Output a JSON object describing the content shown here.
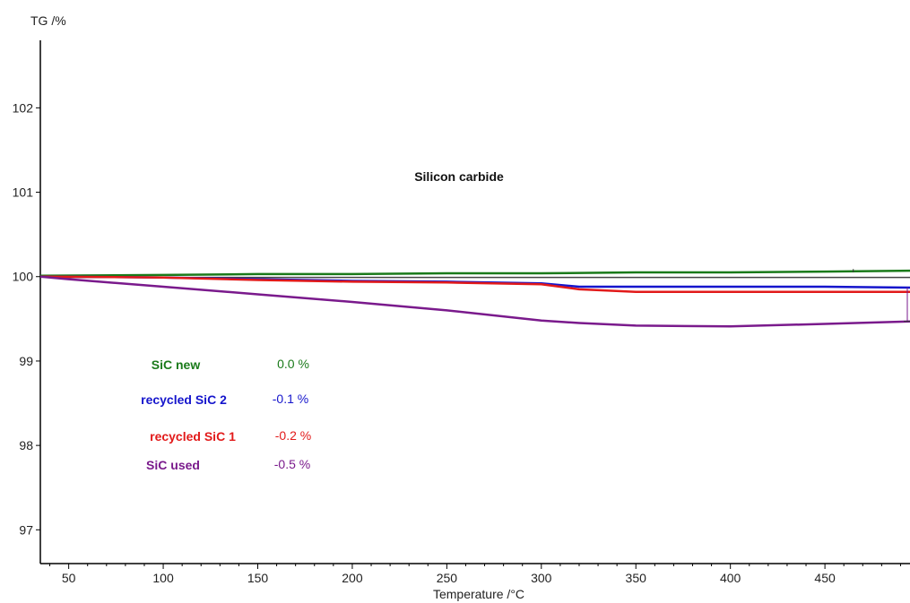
{
  "chart_data": {
    "type": "line",
    "title": "Silicon carbide",
    "xlabel": "Temperature /°C",
    "ylabel": "TG /%",
    "xlim": [
      35,
      495
    ],
    "ylim": [
      96.6,
      102.8
    ],
    "xticks": [
      50,
      100,
      150,
      200,
      250,
      300,
      350,
      400,
      450
    ],
    "yticks": [
      97,
      98,
      99,
      100,
      101,
      102
    ],
    "grid": false,
    "legend_position": "lower-left",
    "series": [
      {
        "name": "SiC new",
        "mass_change": "0.0 %",
        "color": "#1a7a1a",
        "x": [
          35,
          100,
          150,
          200,
          250,
          300,
          350,
          400,
          450,
          495
        ],
        "y": [
          100.01,
          100.02,
          100.03,
          100.03,
          100.04,
          100.04,
          100.05,
          100.05,
          100.06,
          100.07
        ]
      },
      {
        "name": "recycled SiC 2",
        "mass_change": "-0.1 %",
        "color": "#1515cc",
        "x": [
          35,
          100,
          150,
          200,
          250,
          300,
          320,
          350,
          400,
          450,
          495
        ],
        "y": [
          100.0,
          99.99,
          99.97,
          99.95,
          99.94,
          99.92,
          99.88,
          99.88,
          99.88,
          99.88,
          99.87
        ]
      },
      {
        "name": "recycled SiC 1",
        "mass_change": "-0.2 %",
        "color": "#e21a1a",
        "x": [
          35,
          100,
          150,
          200,
          250,
          300,
          320,
          350,
          400,
          450,
          495
        ],
        "y": [
          100.0,
          99.99,
          99.96,
          99.94,
          99.93,
          99.91,
          99.85,
          99.82,
          99.82,
          99.82,
          99.82
        ]
      },
      {
        "name": "SiC used",
        "mass_change": "-0.5 %",
        "color": "#7a1a8c",
        "x": [
          35,
          50,
          100,
          150,
          200,
          250,
          300,
          320,
          350,
          400,
          450,
          495
        ],
        "y": [
          100.0,
          99.97,
          99.88,
          99.79,
          99.7,
          99.6,
          99.48,
          99.45,
          99.42,
          99.41,
          99.44,
          99.47
        ]
      }
    ],
    "reference_line": {
      "y": 99.99,
      "color": "#444444"
    }
  }
}
